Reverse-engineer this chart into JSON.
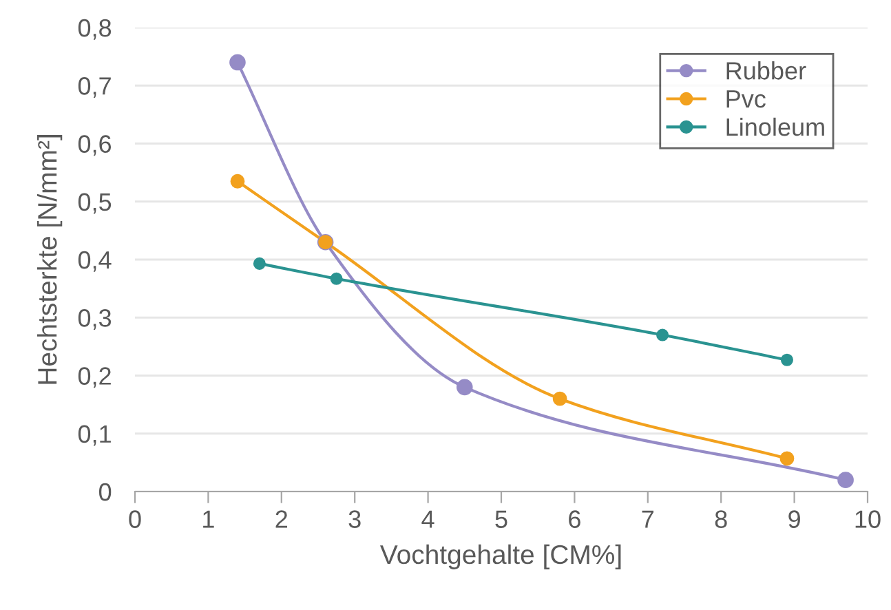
{
  "chart_data": {
    "type": "line",
    "xlabel": "Vochtgehalte [CM%]",
    "ylabel": "Hechtsterkte [N/mm²]",
    "xlim": [
      0,
      10
    ],
    "xticks": [
      0,
      1,
      2,
      3,
      4,
      5,
      6,
      7,
      8,
      9,
      10
    ],
    "ylim": [
      0,
      0.8
    ],
    "yticks": [
      {
        "value": 0,
        "label": "0"
      },
      {
        "value": 0.1,
        "label": "0,1"
      },
      {
        "value": 0.2,
        "label": "0,2"
      },
      {
        "value": 0.3,
        "label": "0,3"
      },
      {
        "value": 0.4,
        "label": "0,4"
      },
      {
        "value": 0.5,
        "label": "0,5"
      },
      {
        "value": 0.6,
        "label": "0,6"
      },
      {
        "value": 0.7,
        "label": "0,7"
      },
      {
        "value": 0.8,
        "label": "0,8"
      }
    ],
    "grid": "y",
    "legend": "top right",
    "marker": "circle",
    "line_style": "solid",
    "series": [
      {
        "name": "Rubber",
        "color": "#958bc6",
        "x": [
          1.4,
          2.6,
          4.5,
          9.7
        ],
        "values": [
          0.74,
          0.43,
          0.18,
          0.02
        ]
      },
      {
        "name": "Pvc",
        "color": "#f2a11e",
        "x": [
          1.4,
          2.6,
          5.8,
          8.9
        ],
        "values": [
          0.535,
          0.43,
          0.16,
          0.057
        ]
      },
      {
        "name": "Linoleum",
        "color": "#2a9391",
        "x": [
          1.7,
          2.75,
          7.2,
          8.9
        ],
        "values": [
          0.393,
          0.367,
          0.27,
          0.227
        ]
      }
    ]
  }
}
